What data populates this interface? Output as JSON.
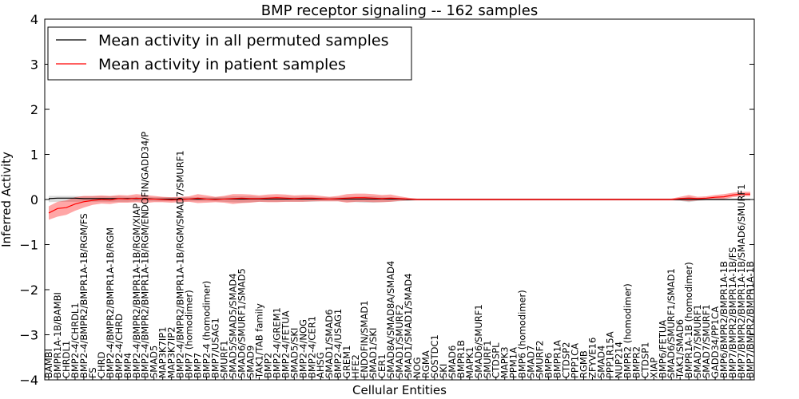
{
  "chart_data": {
    "type": "line",
    "title": "BMP receptor signaling -- 162 samples",
    "xlabel": "Cellular Entities",
    "ylabel": "Inferred Activity",
    "ylim": [
      -4,
      4
    ],
    "yticks": [
      -4,
      -3,
      -2,
      -1,
      0,
      1,
      2,
      3,
      4
    ],
    "legend_position": "top-left",
    "categories": [
      "BAMBI",
      "BMPR1A-1B/BAMBI",
      "CHRDL1",
      "BMP2-4/CHRDL1",
      "BMP2-4/BMPR2/BMPR1A-1B/RGM/FS",
      "FS",
      "CHRD",
      "BMP2-4/BMPR2/BMPR1A-1B/RGM",
      "BMP2-4/CHRD",
      "BMP4",
      "BMP2-4/BMPR2/BMPR1A-1B/RGM/XIAP",
      "BMP2-4/BMPR2/BMPR1A-1B/RGM/ENDOFIN/GADD34/P",
      "SMAD5",
      "MAP3K7IP1",
      "MAP3K7IP2",
      "BMP2-4/BMPR2/BMPR1A-1B/RGM/SMAD7/SMURF1",
      "BMP7 (homodimer)",
      "BMP7",
      "BMP2-4 (homodimer)",
      "BMP7/USAG1",
      "SMURF1",
      "SMAD5/SMAD5/SMAD4",
      "SMAD6/SMURF1/SMAD5",
      "SMAD9",
      "TAK1/TAB family",
      "BMP2",
      "BMP2-4/GREM1",
      "BMP2-4/FETUA",
      "SMAD5/SKI",
      "BMP2-4/NOG",
      "BMP2-4/CER1",
      "AHSG",
      "SMAD1/SMAD6",
      "BMP2-4/USAG1",
      "GREM1",
      "HFE2",
      "ENDOFIN/SMAD1",
      "SMAD1/SKI",
      "CER1",
      "SMAD8A/SMAD8A/SMAD4",
      "SMAD1/SMURF2",
      "SMAD1/SMAD1/SMAD4",
      "NOG",
      "RGMA",
      "SOSTDC1",
      "SKI",
      "SMAD6",
      "BMPR1B",
      "MAPK1",
      "SMAD6/SMURF1",
      "SMURF1",
      "CTDSPL",
      "MAPK3",
      "PPM1A",
      "BMP6 (homodimer)",
      "SMAD7",
      "SMURF2",
      "BMP6",
      "BMPR1A",
      "CTDSP2",
      "PPP1CA",
      "RGMB",
      "ZFYVE16",
      "SMAD4",
      "PPP1R15A",
      "NUP214",
      "BMPR2 (homodimer)",
      "BMPR2",
      "CTDSP1",
      "XIAP",
      "BMP6/FETUA",
      "SMAD6/SMURF1/SMAD1",
      "TAK1/SMAD6",
      "BMPR1A-1B (homodimer)",
      "SMAD7/SMURF1",
      "SMAD7/SMURF1",
      "GADD34/PP1CA",
      "BMP6/BMPR2/BMPR1A-1B",
      "BMP7/BMPR2/BMPR1A-1B/FS",
      "BMP7/BMPR2/BMPR1A-1B/SMAD6/SMURF1",
      "BMP7/BMPR2/BMPR1A-1B"
    ],
    "series": [
      {
        "name": "Mean activity in all permuted samples",
        "color": "#000000",
        "values": [
          0.02,
          0.03,
          0.03,
          0.03,
          0.02,
          0.02,
          0.02,
          0.02,
          0.02,
          0.02,
          0.02,
          0.02,
          0.01,
          0.01,
          0.01,
          0.01,
          0.01,
          0.01,
          0.01,
          0.01,
          0.01,
          0.01,
          0.01,
          0.01,
          0.01,
          0.01,
          0.01,
          0.01,
          0.01,
          0.01,
          0.01,
          0.01,
          0.01,
          0.01,
          0.01,
          0.01,
          0.01,
          0.01,
          0.01,
          0.01,
          0.01,
          0.0,
          0.0,
          0.0,
          0.0,
          0.0,
          0.0,
          0.0,
          0.0,
          0.0,
          0.0,
          0.0,
          0.0,
          0.0,
          0.0,
          0.0,
          0.0,
          0.0,
          0.0,
          0.0,
          0.0,
          0.0,
          0.0,
          0.0,
          0.0,
          0.0,
          0.0,
          0.0,
          0.0,
          0.0,
          0.0,
          0.0,
          0.0,
          0.0,
          0.0,
          0.0,
          0.0,
          0.0,
          0.0,
          0.0,
          0.0
        ],
        "band_low": [
          -0.06,
          -0.05,
          -0.05,
          -0.05,
          -0.05,
          -0.05,
          -0.05,
          -0.05,
          -0.05,
          -0.05,
          -0.04,
          -0.04,
          -0.04,
          -0.04,
          -0.04,
          -0.04,
          -0.04,
          -0.04,
          -0.04,
          -0.04,
          -0.05,
          -0.06,
          -0.07,
          -0.06,
          -0.05,
          -0.05,
          -0.05,
          -0.05,
          -0.05,
          -0.05,
          -0.05,
          -0.04,
          -0.04,
          -0.04,
          -0.05,
          -0.06,
          -0.07,
          -0.07,
          -0.06,
          -0.05,
          -0.04,
          -0.03,
          -0.02,
          -0.02,
          -0.02,
          -0.02,
          -0.02,
          -0.02,
          -0.02,
          -0.02,
          -0.02,
          -0.02,
          -0.02,
          -0.02,
          -0.02,
          -0.02,
          -0.02,
          -0.02,
          -0.02,
          -0.02,
          -0.02,
          -0.02,
          -0.02,
          -0.02,
          -0.02,
          -0.02,
          -0.02,
          -0.02,
          -0.02,
          -0.02,
          -0.02,
          -0.02,
          -0.03,
          -0.06,
          -0.03,
          -0.02,
          -0.02,
          -0.02,
          -0.02,
          -0.02,
          -0.02
        ],
        "band_high": [
          0.08,
          0.08,
          0.08,
          0.08,
          0.07,
          0.07,
          0.07,
          0.07,
          0.07,
          0.06,
          0.06,
          0.06,
          0.05,
          0.05,
          0.05,
          0.05,
          0.05,
          0.05,
          0.05,
          0.05,
          0.06,
          0.07,
          0.07,
          0.07,
          0.06,
          0.06,
          0.06,
          0.06,
          0.06,
          0.06,
          0.05,
          0.05,
          0.05,
          0.05,
          0.06,
          0.06,
          0.07,
          0.07,
          0.06,
          0.05,
          0.04,
          0.03,
          0.02,
          0.02,
          0.02,
          0.02,
          0.02,
          0.02,
          0.02,
          0.02,
          0.02,
          0.02,
          0.02,
          0.02,
          0.02,
          0.02,
          0.02,
          0.02,
          0.02,
          0.02,
          0.02,
          0.02,
          0.02,
          0.02,
          0.02,
          0.02,
          0.02,
          0.02,
          0.02,
          0.02,
          0.02,
          0.02,
          0.03,
          0.06,
          0.03,
          0.02,
          0.02,
          0.02,
          0.02,
          0.02,
          0.02
        ]
      },
      {
        "name": "Mean activity in patient samples",
        "color": "#ff0000",
        "values": [
          -0.3,
          -0.2,
          -0.18,
          -0.1,
          -0.05,
          -0.02,
          0.0,
          -0.01,
          0.02,
          0.01,
          0.03,
          0.01,
          0.01,
          0.0,
          -0.01,
          0.0,
          0.01,
          0.03,
          0.01,
          0.0,
          0.01,
          0.02,
          0.03,
          0.02,
          0.02,
          0.03,
          0.04,
          0.03,
          0.02,
          0.03,
          0.03,
          0.02,
          0.01,
          0.02,
          0.03,
          0.04,
          0.04,
          0.03,
          0.02,
          0.03,
          0.02,
          0.01,
          0.0,
          0.0,
          0.0,
          0.0,
          0.0,
          0.0,
          0.0,
          0.0,
          0.0,
          0.0,
          0.0,
          0.0,
          0.0,
          0.0,
          0.0,
          0.0,
          0.0,
          0.0,
          0.0,
          0.0,
          0.0,
          0.0,
          0.0,
          0.0,
          0.0,
          0.0,
          0.0,
          0.0,
          0.0,
          0.0,
          0.02,
          0.03,
          0.02,
          0.03,
          0.05,
          0.06,
          0.1,
          0.12,
          0.12
        ],
        "band_low": [
          -0.45,
          -0.38,
          -0.34,
          -0.25,
          -0.18,
          -0.12,
          -0.09,
          -0.1,
          -0.07,
          -0.07,
          -0.06,
          -0.08,
          -0.06,
          -0.06,
          -0.07,
          -0.06,
          -0.05,
          -0.08,
          -0.07,
          -0.06,
          -0.07,
          -0.1,
          -0.08,
          -0.07,
          -0.05,
          -0.06,
          -0.06,
          -0.05,
          -0.05,
          -0.05,
          -0.04,
          -0.04,
          -0.04,
          -0.04,
          -0.07,
          -0.05,
          -0.05,
          -0.06,
          -0.06,
          -0.05,
          -0.03,
          -0.02,
          -0.02,
          -0.02,
          -0.02,
          -0.02,
          -0.02,
          -0.02,
          -0.02,
          -0.02,
          -0.02,
          -0.02,
          -0.02,
          -0.02,
          -0.02,
          -0.02,
          -0.02,
          -0.02,
          -0.02,
          -0.02,
          -0.02,
          -0.02,
          -0.02,
          -0.02,
          -0.02,
          -0.02,
          -0.02,
          -0.02,
          -0.02,
          -0.02,
          -0.02,
          -0.02,
          -0.02,
          -0.04,
          -0.02,
          -0.01,
          0.0,
          0.01,
          0.05,
          0.07,
          0.07
        ],
        "band_high": [
          -0.15,
          -0.05,
          -0.02,
          0.05,
          0.08,
          0.08,
          0.09,
          0.08,
          0.1,
          0.09,
          0.12,
          0.1,
          0.08,
          0.06,
          0.05,
          0.06,
          0.07,
          0.12,
          0.09,
          0.06,
          0.08,
          0.12,
          0.12,
          0.11,
          0.09,
          0.11,
          0.12,
          0.11,
          0.09,
          0.1,
          0.1,
          0.08,
          0.06,
          0.08,
          0.12,
          0.13,
          0.13,
          0.12,
          0.1,
          0.11,
          0.07,
          0.04,
          0.02,
          0.02,
          0.02,
          0.02,
          0.02,
          0.02,
          0.02,
          0.02,
          0.02,
          0.02,
          0.02,
          0.02,
          0.02,
          0.02,
          0.02,
          0.02,
          0.02,
          0.02,
          0.02,
          0.02,
          0.02,
          0.02,
          0.02,
          0.02,
          0.02,
          0.02,
          0.02,
          0.02,
          0.02,
          0.02,
          0.06,
          0.1,
          0.06,
          0.07,
          0.1,
          0.12,
          0.15,
          0.17,
          0.17
        ]
      }
    ]
  }
}
